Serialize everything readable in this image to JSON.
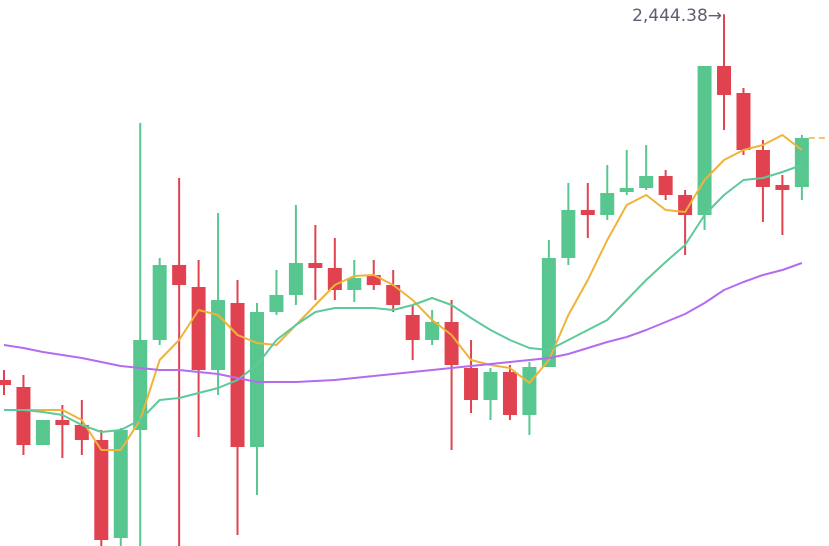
{
  "chart_data": {
    "type": "candlestick",
    "up_color": "#58c78f",
    "down_color": "#e0424f",
    "ylim": [
      2178.5,
      2451.5
    ],
    "open": [
      2261.5,
      2258,
      2229,
      2241.5,
      2239,
      2231.5,
      2182.5,
      2236.5,
      2281.5,
      2319,
      2308,
      2266.5,
      2300,
      2228,
      2295.5,
      2304,
      2320,
      2317.5,
      2306.5,
      2314,
      2309,
      2294,
      2281.5,
      2290.5,
      2267.5,
      2251.5,
      2265.5,
      2244,
      2268,
      2322.5,
      2346.5,
      2344,
      2355.5,
      2357.5,
      2363.5,
      2354,
      2344,
      2418.5,
      2405,
      2376.5,
      2359,
      2358
    ],
    "high": [
      2266.5,
      2264,
      2241.5,
      2249,
      2251.5,
      2236.5,
      2237.5,
      2390,
      2322.5,
      2362.5,
      2321.5,
      2345,
      2311.5,
      2300,
      2316.5,
      2349,
      2339,
      2332.5,
      2321.5,
      2321.5,
      2316.5,
      2299,
      2296.5,
      2301.5,
      2281.5,
      2267.5,
      2269,
      2270.5,
      2331.5,
      2360,
      2360,
      2369,
      2376.5,
      2379,
      2366.5,
      2356.5,
      2418.5,
      2444.38,
      2407.5,
      2381.5,
      2364,
      2384
    ],
    "low": [
      2254,
      2224,
      2229,
      2222.5,
      2224,
      2178.5,
      2178.5,
      2178.5,
      2279,
      2178.5,
      2233,
      2254,
      2184,
      2204,
      2294,
      2299,
      2301.5,
      2301.5,
      2300.5,
      2306.5,
      2295.5,
      2271.5,
      2279,
      2226.5,
      2245,
      2241.5,
      2241.5,
      2234,
      2268,
      2319,
      2332.5,
      2341.5,
      2354,
      2356.5,
      2351.5,
      2324,
      2336.5,
      2386.5,
      2374,
      2340.5,
      2334,
      2351.5
    ],
    "close": [
      2259,
      2229,
      2241.5,
      2239,
      2231.5,
      2181.5,
      2236.5,
      2281.5,
      2319,
      2309,
      2266.5,
      2301.5,
      2228,
      2295.5,
      2304,
      2320,
      2317.5,
      2306.5,
      2312.5,
      2309,
      2299,
      2281.5,
      2290.5,
      2269,
      2251.5,
      2265.5,
      2244,
      2268,
      2322.5,
      2346.5,
      2344,
      2355,
      2357.5,
      2363.5,
      2354,
      2344,
      2418.5,
      2404,
      2376.5,
      2358,
      2356.5,
      2382.5
    ],
    "series": [
      {
        "color": "#f0b33a",
        "values": [
          2246.5,
          2246.5,
          2246.5,
          2246.5,
          2241.5,
          2226.5,
          2226.5,
          2241.5,
          2271.5,
          2281.5,
          2296.5,
          2294,
          2284,
          2280,
          2279,
          2289,
          2299,
          2309,
          2313.5,
          2314,
          2309,
          2301.5,
          2291.5,
          2284,
          2271.5,
          2269,
          2267.5,
          2260,
          2271.5,
          2294,
          2311.5,
          2331.5,
          2349,
          2354,
          2346.5,
          2345.5,
          2361.5,
          2371.5,
          2376.5,
          2379,
          2384,
          2376.5
        ]
      },
      {
        "color": "#5ec99a",
        "values": [
          2246.5,
          2246.5,
          2245.5,
          2244,
          2239,
          2235.5,
          2236.5,
          2241.5,
          2251.5,
          2252.5,
          2255,
          2257.5,
          2261.5,
          2269,
          2281.5,
          2289,
          2295.5,
          2297.5,
          2297.5,
          2297.5,
          2296.5,
          2299,
          2302.5,
          2299,
          2292.5,
          2286.5,
          2281.5,
          2277.5,
          2276.5,
          2281.5,
          2286.5,
          2291.5,
          2301.5,
          2311.5,
          2320.5,
          2329,
          2344,
          2354,
          2361.5,
          2362.5,
          2365.5,
          2369
        ]
      },
      {
        "color": "#b36cf0",
        "values": [
          2279,
          2277.5,
          2275.5,
          2274,
          2272.5,
          2270.5,
          2268.5,
          2267.5,
          2266.5,
          2266.5,
          2265.5,
          2264.5,
          2262.5,
          2260.5,
          2260.5,
          2260.5,
          2261,
          2261.5,
          2262.5,
          2263.5,
          2264.5,
          2265.5,
          2266.5,
          2267.5,
          2268.5,
          2269.5,
          2270.5,
          2271.5,
          2272.5,
          2274.5,
          2277.5,
          2280.5,
          2283,
          2286.5,
          2290.5,
          2294.5,
          2300,
          2306.5,
          2310.5,
          2314,
          2316.5,
          2320
        ]
      }
    ],
    "annotation": {
      "value": 2444.38,
      "label": "2,444.38→"
    }
  }
}
